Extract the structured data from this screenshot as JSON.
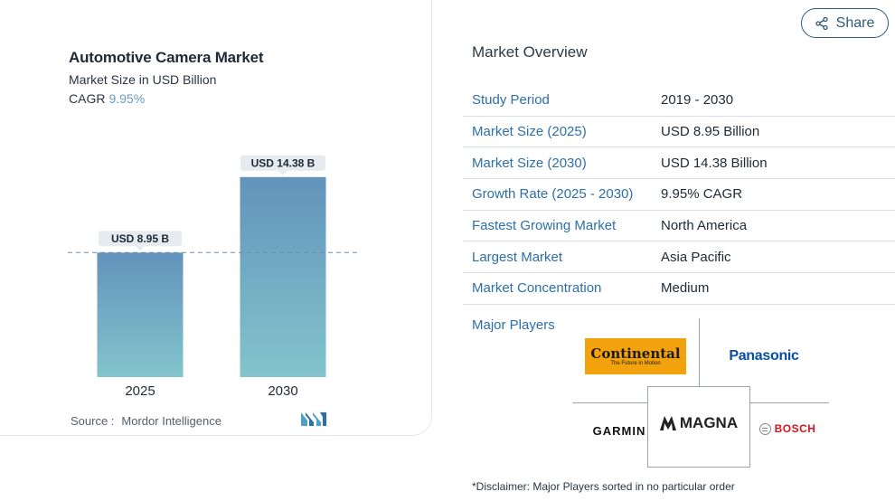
{
  "share": {
    "label": "Share",
    "icon": "share-icon"
  },
  "chart_data": {
    "type": "bar",
    "title": "Automotive Camera Market",
    "subtitle": "Market Size in USD Billion",
    "cagr_label": "CAGR",
    "cagr_value": "9.95%",
    "categories": [
      "2025",
      "2030"
    ],
    "values": [
      8.95,
      14.38
    ],
    "data_labels": [
      "USD 8.95 B",
      "USD 14.38 B"
    ],
    "ylim": [
      0,
      16.25
    ],
    "reference_line": 8.95,
    "grid": false,
    "bar_gradient": [
      "#6393bb",
      "#82c4cc"
    ],
    "label_bg": "#e5ebef",
    "reference_color": "#6a8fad"
  },
  "source": {
    "label": "Source :",
    "value": "Mordor Intelligence"
  },
  "overview": {
    "title": "Market Overview",
    "rows": [
      {
        "key": "Study Period",
        "value": "2019 - 2030"
      },
      {
        "key": "Market Size (2025)",
        "value": "USD 8.95 Billion"
      },
      {
        "key": "Market Size (2030)",
        "value": "USD 14.38 Billion"
      },
      {
        "key": "Growth Rate (2025 - 2030)",
        "value": "9.95% CAGR"
      },
      {
        "key": "Fastest Growing Market",
        "value": "North America"
      },
      {
        "key": "Largest Market",
        "value": "Asia Pacific"
      },
      {
        "key": "Market Concentration",
        "value": "Medium"
      }
    ],
    "key_color": "#2d6fa8"
  },
  "players": {
    "label": "Major Players",
    "continental": "Continental",
    "continental_tag": "The Future in Motion",
    "panasonic": "Panasonic",
    "garmin": "GARMIN",
    "magna": "MAGNA",
    "bosch": "BOSCH"
  },
  "disclaimer": "*Disclaimer: Major Players sorted in no particular order"
}
